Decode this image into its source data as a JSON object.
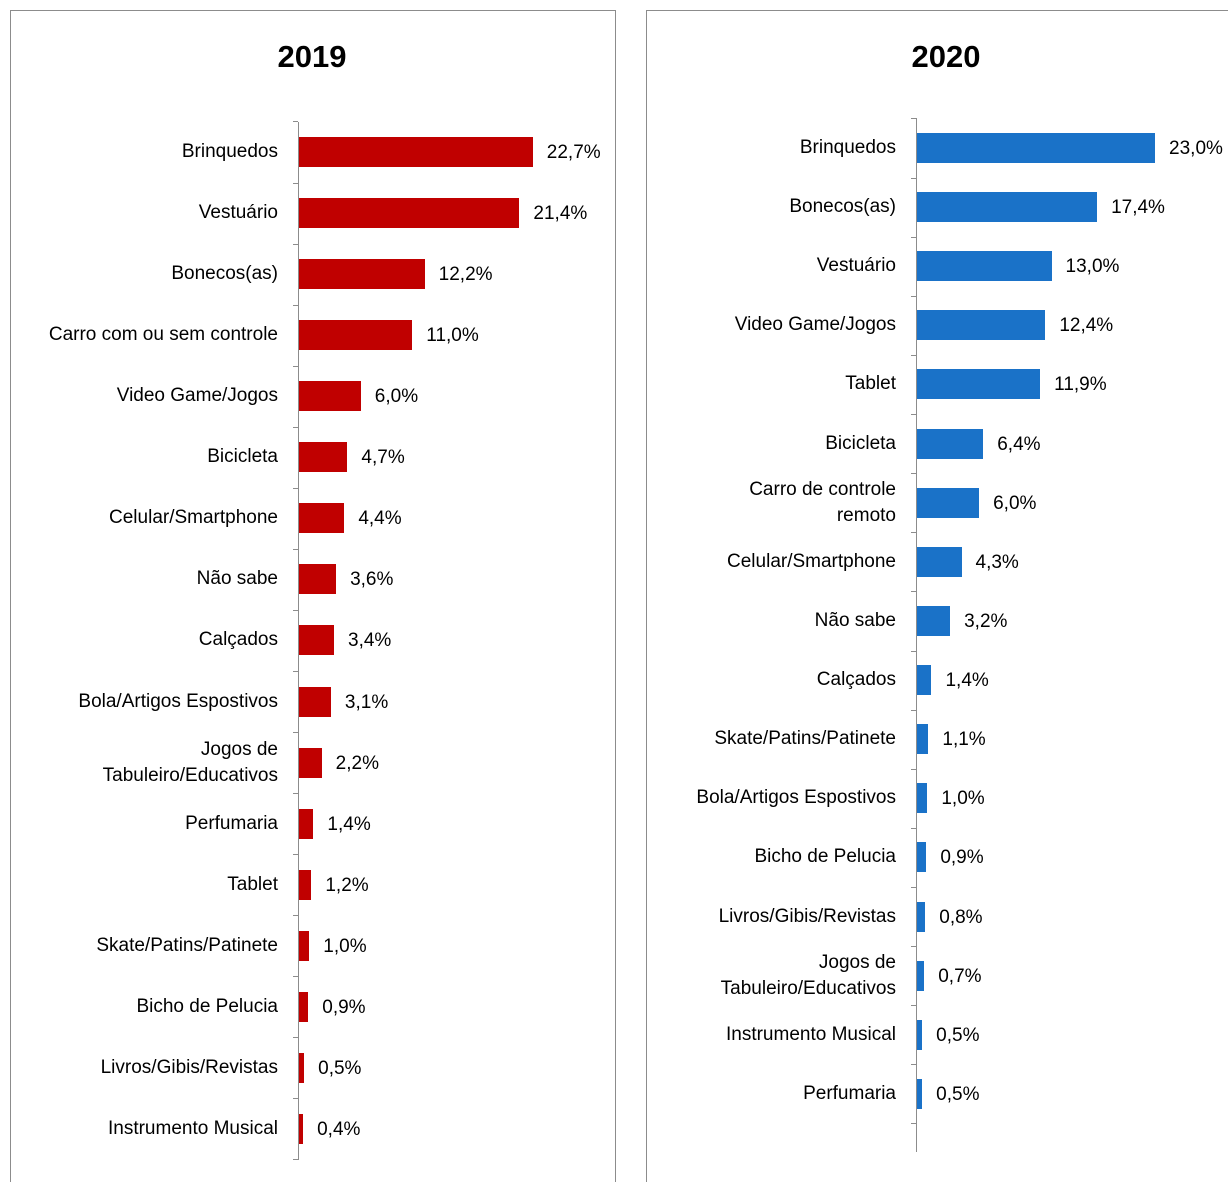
{
  "chart_data": [
    {
      "type": "bar",
      "orientation": "horizontal",
      "title": "2019",
      "color": "#c00000",
      "categories": [
        "Brinquedos",
        "Vestuário",
        "Bonecos(as)",
        "Carro com ou sem controle",
        "Video Game/Jogos",
        "Bicicleta",
        "Celular/Smartphone",
        "Não sabe",
        "Calçados",
        "Bola/Artigos Espostivos",
        "Jogos de\nTabuleiro/Educativos",
        "Perfumaria",
        "Tablet",
        "Skate/Patins/Patinete",
        "Bicho de Pelucia",
        "Livros/Gibis/Revistas",
        "Instrumento Musical"
      ],
      "values": [
        22.7,
        21.4,
        12.2,
        11.0,
        6.0,
        4.7,
        4.4,
        3.6,
        3.4,
        3.1,
        2.2,
        1.4,
        1.2,
        1.0,
        0.9,
        0.5,
        0.4
      ],
      "value_labels": [
        "22,7%",
        "21,4%",
        "12,2%",
        "11,0%",
        "6,0%",
        "4,7%",
        "4,4%",
        "3,6%",
        "3,4%",
        "3,1%",
        "2,2%",
        "1,4%",
        "1,2%",
        "1,0%",
        "0,9%",
        "0,5%",
        "0,4%"
      ]
    },
    {
      "type": "bar",
      "orientation": "horizontal",
      "title": "2020",
      "color": "#1a72c8",
      "categories": [
        "Brinquedos",
        "Bonecos(as)",
        "Vestuário",
        "Video Game/Jogos",
        "Tablet",
        "Bicicleta",
        "Carro de controle\nremoto",
        "Celular/Smartphone",
        "Não sabe",
        "Calçados",
        "Skate/Patins/Patinete",
        "Bola/Artigos Espostivos",
        "Bicho de Pelucia",
        "Livros/Gibis/Revistas",
        "Jogos de\nTabuleiro/Educativos",
        "Instrumento Musical",
        "Perfumaria"
      ],
      "values": [
        23.0,
        17.4,
        13.0,
        12.4,
        11.9,
        6.4,
        6.0,
        4.3,
        3.2,
        1.4,
        1.1,
        1.0,
        0.9,
        0.8,
        0.7,
        0.5,
        0.5
      ],
      "value_labels": [
        "23,0%",
        "17,4%",
        "13,0%",
        "12,4%",
        "11,9%",
        "6,4%",
        "6,0%",
        "4,3%",
        "3,2%",
        "1,4%",
        "1,1%",
        "1,0%",
        "0,9%",
        "0,8%",
        "0,7%",
        "0,5%",
        "0,5%"
      ]
    }
  ]
}
